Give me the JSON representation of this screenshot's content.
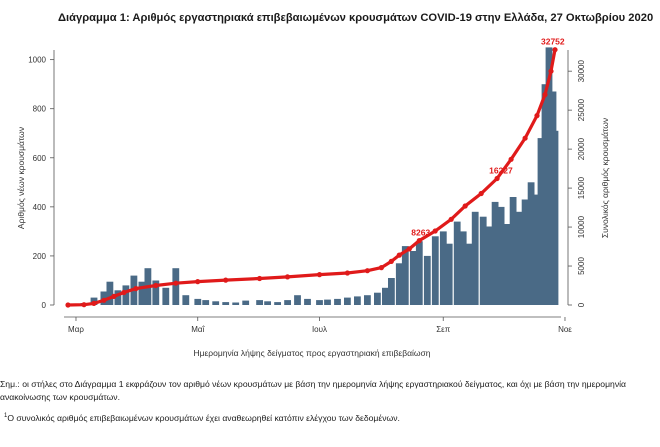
{
  "chart_data": {
    "type": "bar+line",
    "title": "Διάγραμμα 1: Αριθμός εργαστηριακά επιβεβαιωμένων κρουσμάτων COVID-19 στην Ελλάδα, 27 Οκτωβρίου 2020",
    "xlabel": "Ημερομηνία λήψης δείγματος προς εργαστηριακή επιβεβαίωση",
    "ylabel_left": "Αριθμός νέων κρουσμάτων",
    "ylabel_right": "Συνολικός αριθμός κρουσμάτων",
    "x_ticks": [
      "Μαρ",
      "Μαΐ",
      "Ιουλ",
      "Σεπ",
      "Νοε"
    ],
    "x_tick_dates": [
      "2020-03-01",
      "2020-05-01",
      "2020-07-01",
      "2020-09-01",
      "2020-11-01"
    ],
    "x_range": [
      "2020-02-26",
      "2020-10-27"
    ],
    "y_left": {
      "range": [
        0,
        1080
      ],
      "ticks": [
        0,
        200,
        400,
        600,
        800,
        1000
      ]
    },
    "y_right": {
      "range": [
        0,
        34000
      ],
      "ticks": [
        0,
        5000,
        10000,
        15000,
        20000,
        25000,
        30000
      ]
    },
    "grid": false,
    "series": [
      {
        "kind": "bar",
        "color": "#4a6a86",
        "points": [
          [
            "2020-03-05",
            8
          ],
          [
            "2020-03-10",
            30
          ],
          [
            "2020-03-15",
            55
          ],
          [
            "2020-03-18",
            95
          ],
          [
            "2020-03-22",
            60
          ],
          [
            "2020-03-26",
            80
          ],
          [
            "2020-03-30",
            120
          ],
          [
            "2020-04-03",
            95
          ],
          [
            "2020-04-06",
            150
          ],
          [
            "2020-04-10",
            100
          ],
          [
            "2020-04-15",
            70
          ],
          [
            "2020-04-20",
            150
          ],
          [
            "2020-04-25",
            40
          ],
          [
            "2020-05-01",
            25
          ],
          [
            "2020-05-05",
            20
          ],
          [
            "2020-05-10",
            15
          ],
          [
            "2020-05-15",
            12
          ],
          [
            "2020-05-20",
            10
          ],
          [
            "2020-05-25",
            18
          ],
          [
            "2020-06-01",
            20
          ],
          [
            "2020-06-05",
            15
          ],
          [
            "2020-06-10",
            12
          ],
          [
            "2020-06-15",
            20
          ],
          [
            "2020-06-20",
            40
          ],
          [
            "2020-06-25",
            25
          ],
          [
            "2020-07-01",
            20
          ],
          [
            "2020-07-05",
            22
          ],
          [
            "2020-07-10",
            25
          ],
          [
            "2020-07-15",
            30
          ],
          [
            "2020-07-20",
            35
          ],
          [
            "2020-07-25",
            40
          ],
          [
            "2020-07-30",
            50
          ],
          [
            "2020-08-03",
            70
          ],
          [
            "2020-08-06",
            110
          ],
          [
            "2020-08-10",
            170
          ],
          [
            "2020-08-13",
            240
          ],
          [
            "2020-08-17",
            220
          ],
          [
            "2020-08-20",
            260
          ],
          [
            "2020-08-24",
            200
          ],
          [
            "2020-08-28",
            280
          ],
          [
            "2020-09-01",
            300
          ],
          [
            "2020-09-04",
            250
          ],
          [
            "2020-09-08",
            340
          ],
          [
            "2020-09-11",
            300
          ],
          [
            "2020-09-14",
            250
          ],
          [
            "2020-09-17",
            380
          ],
          [
            "2020-09-21",
            360
          ],
          [
            "2020-09-24",
            320
          ],
          [
            "2020-09-27",
            420
          ],
          [
            "2020-09-30",
            400
          ],
          [
            "2020-10-03",
            330
          ],
          [
            "2020-10-06",
            440
          ],
          [
            "2020-10-09",
            380
          ],
          [
            "2020-10-12",
            430
          ],
          [
            "2020-10-15",
            500
          ],
          [
            "2020-10-18",
            450
          ],
          [
            "2020-10-20",
            680
          ],
          [
            "2020-10-22",
            900
          ],
          [
            "2020-10-24",
            1050
          ],
          [
            "2020-10-26",
            870
          ],
          [
            "2020-10-27",
            710
          ]
        ]
      },
      {
        "kind": "line",
        "name": "Συνολικός αριθμός κρουσμάτων",
        "color": "#e01a1a",
        "labels": [
          "8263",
          "16227",
          "32752"
        ],
        "points": [
          [
            "2020-02-26",
            1
          ],
          [
            "2020-03-05",
            40
          ],
          [
            "2020-03-10",
            200
          ],
          [
            "2020-03-15",
            600
          ],
          [
            "2020-03-20",
            1100
          ],
          [
            "2020-03-25",
            1600
          ],
          [
            "2020-03-31",
            2100
          ],
          [
            "2020-04-10",
            2500
          ],
          [
            "2020-04-20",
            2800
          ],
          [
            "2020-05-01",
            3000
          ],
          [
            "2020-05-15",
            3200
          ],
          [
            "2020-06-01",
            3400
          ],
          [
            "2020-06-15",
            3600
          ],
          [
            "2020-07-01",
            3900
          ],
          [
            "2020-07-15",
            4100
          ],
          [
            "2020-07-25",
            4400
          ],
          [
            "2020-08-01",
            4800
          ],
          [
            "2020-08-06",
            5600
          ],
          [
            "2020-08-10",
            6400
          ],
          [
            "2020-08-15",
            7200
          ],
          [
            "2020-08-20",
            8263
          ],
          [
            "2020-08-28",
            9500
          ],
          [
            "2020-09-05",
            11000
          ],
          [
            "2020-09-12",
            12700
          ],
          [
            "2020-09-20",
            14300
          ],
          [
            "2020-09-28",
            16227
          ],
          [
            "2020-10-05",
            18700
          ],
          [
            "2020-10-12",
            21400
          ],
          [
            "2020-10-18",
            24300
          ],
          [
            "2020-10-22",
            27000
          ],
          [
            "2020-10-25",
            30000
          ],
          [
            "2020-10-27",
            32752
          ]
        ]
      }
    ]
  },
  "notes": {
    "main": "Σημ.: οι στήλες στο Διάγραμμα 1 εκφράζουν τον αριθμό νέων κρουσμάτων με βάση την ημερομηνία λήψης εργαστηριακού δείγματος, και όχι με βάση την ημερομηνία ανακοίνωσης των κρουσμάτων.",
    "footnote_mark": "1",
    "footnote": "Ο συνολικός αριθμός επιβεβαιωμένων κρουσμάτων έχει αναθεωρηθεί κατόπιν ελέγχου των δεδομένων."
  }
}
